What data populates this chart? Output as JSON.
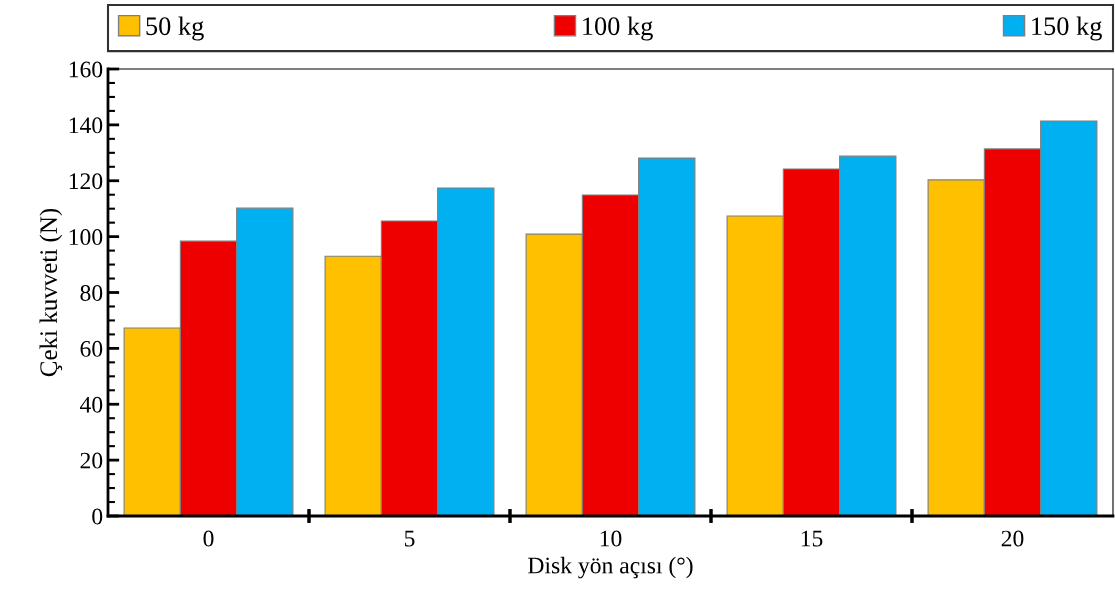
{
  "chart_data": {
    "type": "bar",
    "xlabel": "Disk yön açısı (°)",
    "ylabel": "Çeki kuvveti (N)",
    "categories": [
      "0",
      "5",
      "10",
      "15",
      "20"
    ],
    "series": [
      {
        "name": "50 kg",
        "color": "#ffc000",
        "values": [
          67.3,
          93,
          100.9,
          107.4,
          120.3
        ]
      },
      {
        "name": "100 kg",
        "color": "#ee0000",
        "values": [
          98.4,
          105.6,
          114.9,
          124.2,
          131.4
        ]
      },
      {
        "name": "150 kg",
        "color": "#00b0f0",
        "values": [
          110.2,
          117.4,
          128.1,
          128.8,
          141.4
        ]
      }
    ],
    "ylim": [
      0,
      160
    ],
    "yticks": [
      0,
      20,
      40,
      60,
      80,
      100,
      120,
      140,
      160
    ],
    "grid": false,
    "legend": "top"
  }
}
